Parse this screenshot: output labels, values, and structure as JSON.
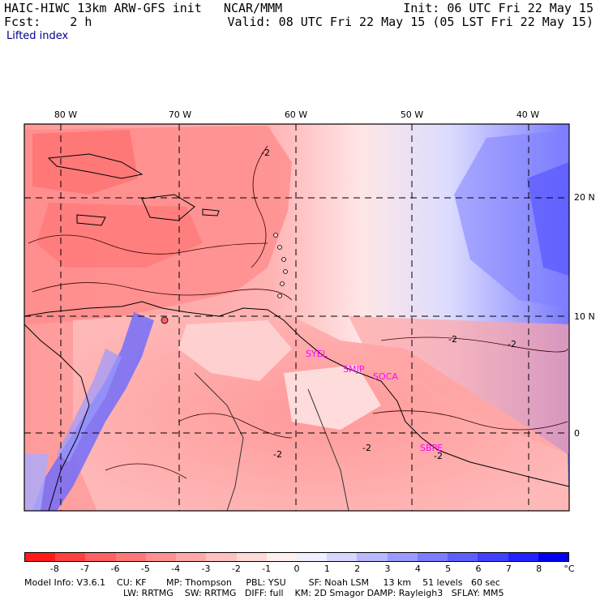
{
  "header": {
    "model_title": "HAIC-HIWC 13km ARW-GFS init   NCAR/MMM",
    "init_time": "Init: 06 UTC Fri 22 May 15",
    "forecast_label": "Fcst:    2 h",
    "valid_time": "Valid: 08 UTC Fri 22 May 15 (05 LST Fri 22 May 15)",
    "field_name": "Lifted index"
  },
  "map": {
    "lon_labels": [
      "80 W",
      "70 W",
      "60 W",
      "50 W",
      "40 W"
    ],
    "lat_labels": [
      "20 N",
      "10 N",
      "0"
    ],
    "station_labels": [
      "SYEL",
      "SMJP",
      "SOCA",
      "SBPE"
    ],
    "contour_label": "-2",
    "station_color": "#ff00ff"
  },
  "colorbar": {
    "ticks": [
      "-8",
      "-7",
      "-6",
      "-5",
      "-4",
      "-3",
      "-2",
      "-1",
      "0",
      "1",
      "2",
      "3",
      "4",
      "5",
      "6",
      "7",
      "8"
    ],
    "unit": "°C",
    "colors": [
      "#ff1a1a",
      "#ff4040",
      "#ff6060",
      "#ff7878",
      "#ff9090",
      "#ffa8a8",
      "#ffc0c0",
      "#ffd8d8",
      "#fff0f0",
      "#f0f0ff",
      "#d6d6ff",
      "#b8b8ff",
      "#9a9aff",
      "#7c7cff",
      "#5e5eff",
      "#4040ff",
      "#2222ff",
      "#0000ee"
    ]
  },
  "footer": {
    "line1": "Model Info: V3.6.1    CU: KF       MP: Thompson     PBL: YSU        SF: Noah LSM     13 km    51 levels   60 sec",
    "line2": "LW: RRTMG    SW: RRTMG   DIFF: full    KM: 2D Smagor DAMP: Rayleigh3   SFLAY: MM5"
  }
}
